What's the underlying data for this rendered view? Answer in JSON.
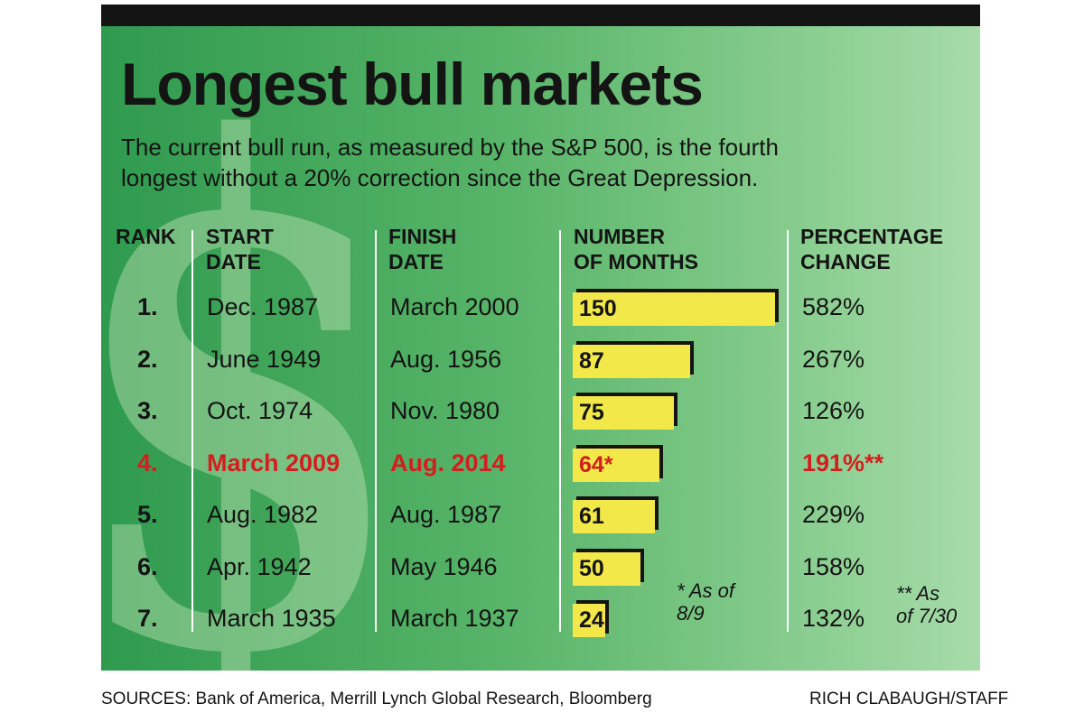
{
  "title": "Longest bull markets",
  "subtitle_line1": "The current bull run, as measured by the S&P 500, is the fourth",
  "subtitle_line2": "longest without a 20% correction since the Great Depression.",
  "headers": {
    "rank": "RANK",
    "start_l1": "START",
    "start_l2": "DATE",
    "finish_l1": "FINISH",
    "finish_l2": "DATE",
    "months_l1": "NUMBER",
    "months_l2": "OF MONTHS",
    "pct_l1": "PERCENTAGE",
    "pct_l2": "CHANGE"
  },
  "rows": [
    {
      "rank": "1.",
      "start": "Dec. 1987",
      "finish": "March 2000",
      "months": 150,
      "months_label": "150",
      "pct": "582%"
    },
    {
      "rank": "2.",
      "start": "June 1949",
      "finish": "Aug. 1956",
      "months": 87,
      "months_label": "87",
      "pct": "267%"
    },
    {
      "rank": "3.",
      "start": "Oct. 1974",
      "finish": "Nov. 1980",
      "months": 75,
      "months_label": "75",
      "pct": "126%"
    },
    {
      "rank": "4.",
      "start": "March 2009",
      "finish": "Aug. 2014",
      "months": 64,
      "months_label": "64*",
      "pct": "191%**",
      "highlight": true
    },
    {
      "rank": "5.",
      "start": "Aug. 1982",
      "finish": "Aug. 1987",
      "months": 61,
      "months_label": "61",
      "pct": "229%"
    },
    {
      "rank": "6.",
      "start": "Apr. 1942",
      "finish": "May 1946",
      "months": 50,
      "months_label": "50",
      "pct": "158%"
    },
    {
      "rank": "7.",
      "start": "March 1935",
      "finish": "March 1937",
      "months": 24,
      "months_label": "24",
      "pct": "132%"
    }
  ],
  "footnote_months_l1": "* As of",
  "footnote_months_l2": "8/9",
  "footnote_pct_l1": "** As",
  "footnote_pct_l2": "of 7/30",
  "sources": "SOURCES: Bank of America, Merrill Lynch Global Research, Bloomberg",
  "credit": "RICH CLABAUGH/STAFF",
  "colors": {
    "highlight": "#d41e1e",
    "bar": "#f2e84a",
    "text": "#141414"
  },
  "chart_data": {
    "type": "table",
    "title": "Longest bull markets",
    "columns": [
      "RANK",
      "START DATE",
      "FINISH DATE",
      "NUMBER OF MONTHS",
      "PERCENTAGE CHANGE"
    ],
    "categories": [
      "1.",
      "2.",
      "3.",
      "4.",
      "5.",
      "6.",
      "7."
    ],
    "values": [
      150,
      87,
      75,
      64,
      61,
      50,
      24
    ],
    "xlim": [
      0,
      150
    ]
  }
}
